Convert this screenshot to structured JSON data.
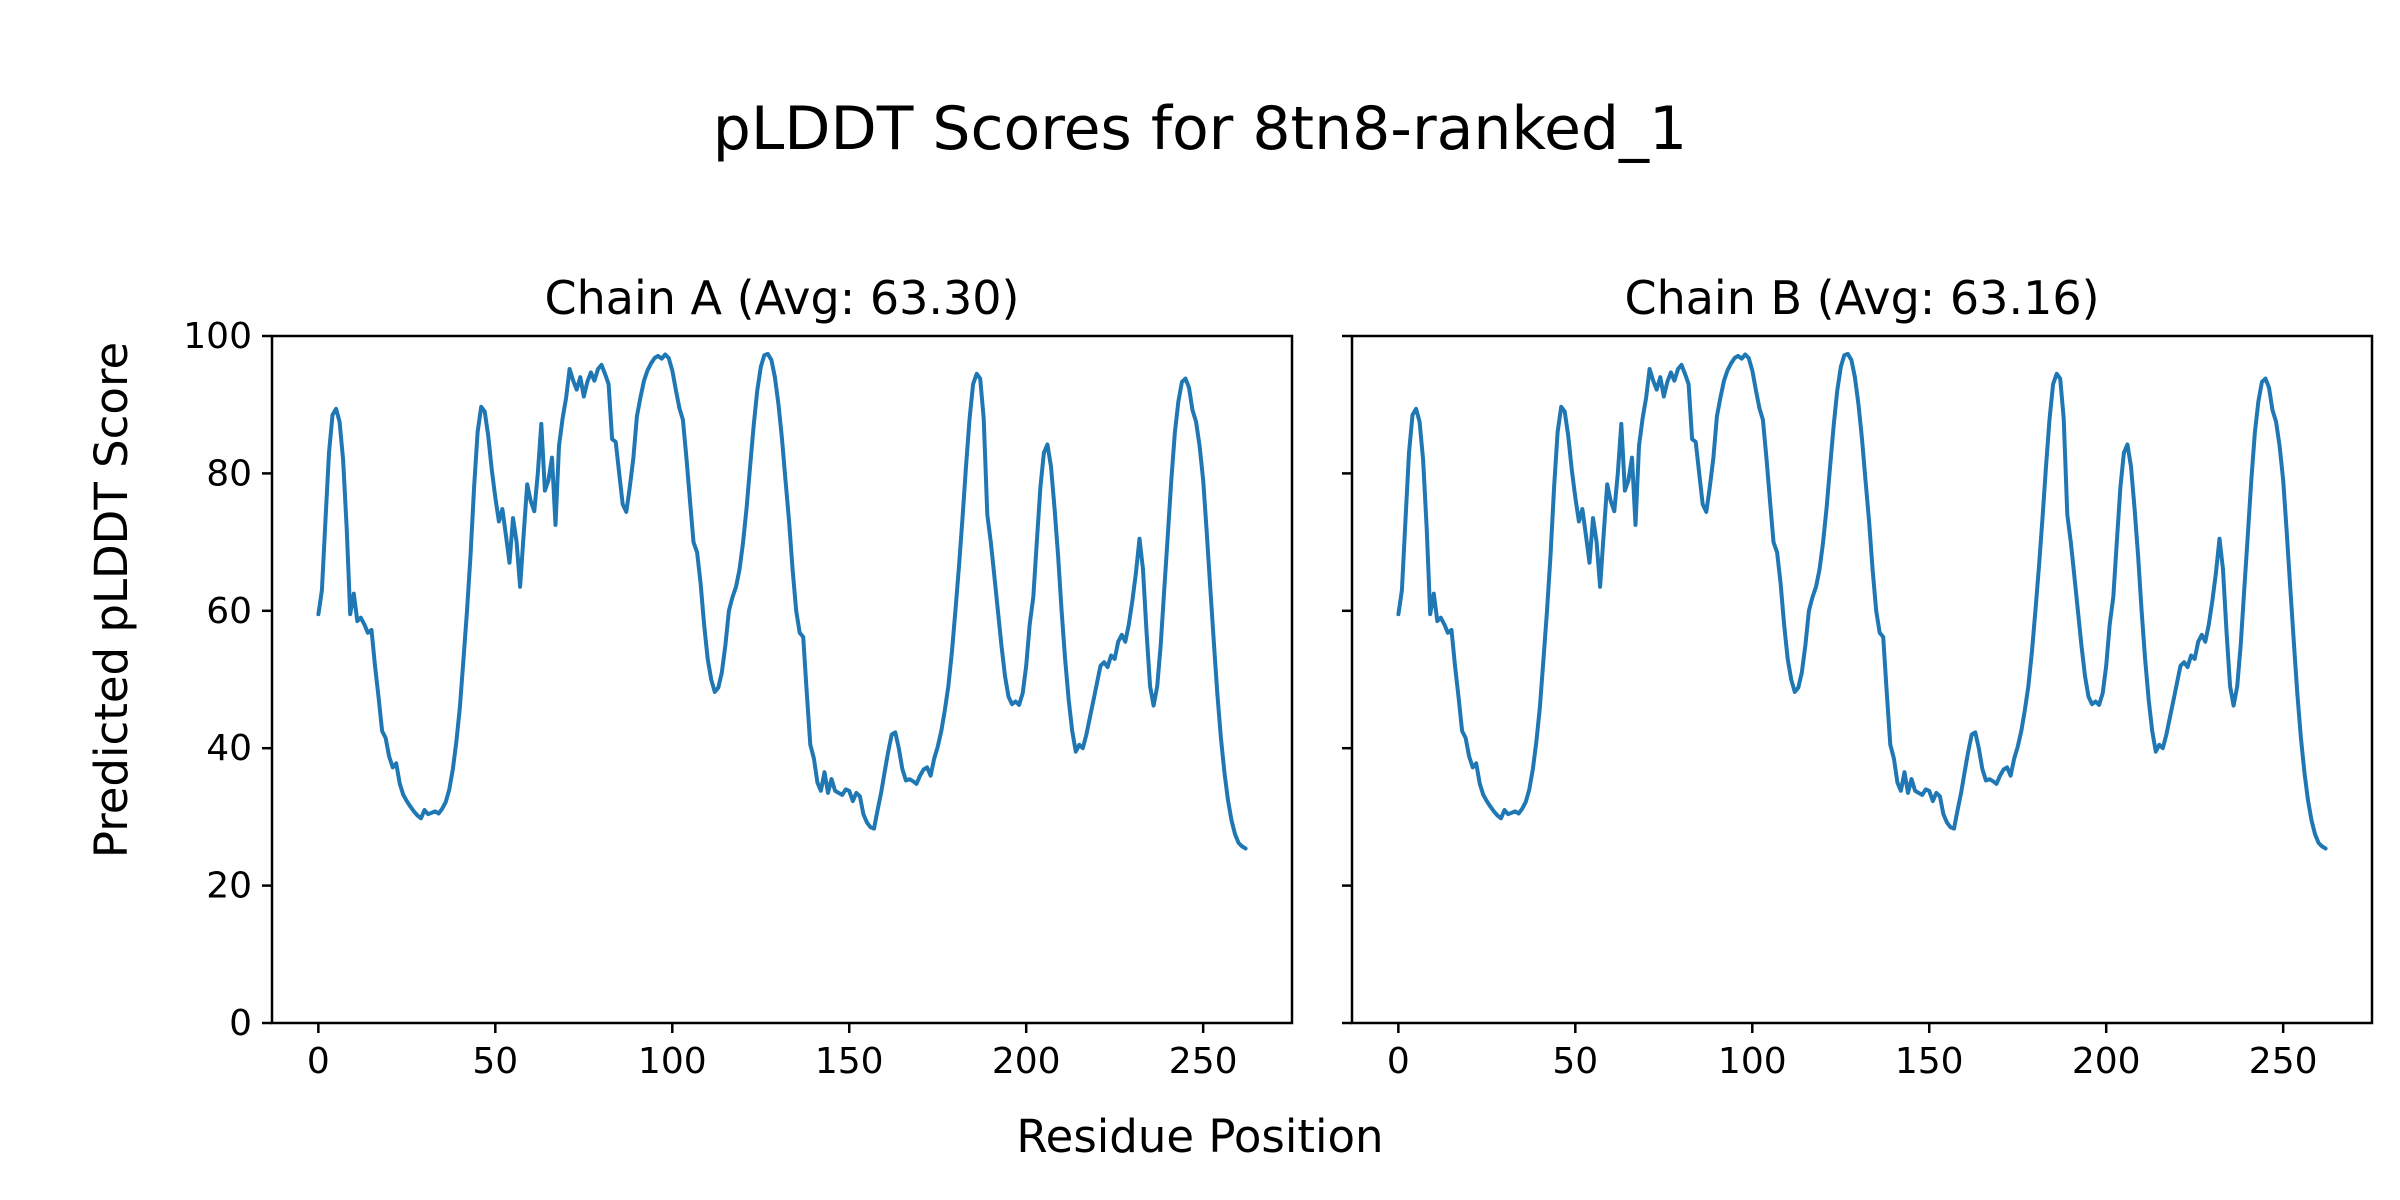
{
  "figure": {
    "title": "pLDDT Scores for 8tn8-ranked_1",
    "xlabel": "Residue Position",
    "ylabel": "Predicted pLDDT Score",
    "background_color": "#ffffff",
    "text_color": "#000000",
    "line_color": "#1f77b4"
  },
  "chart_data": [
    {
      "type": "line",
      "title": "Chain A (Avg: 63.30)",
      "series_name": "Chain A",
      "avg": 63.3,
      "x_start": 0,
      "x_step": 1,
      "xlim": [
        -13.1,
        275.1
      ],
      "ylim": [
        0,
        100
      ],
      "xticks": [
        0,
        50,
        100,
        150,
        200,
        250
      ],
      "yticks": [
        0,
        20,
        40,
        60,
        80,
        100
      ],
      "ytick_labels_visible": true,
      "grid": false,
      "legend": "none",
      "values_ref": "shared_plddt"
    },
    {
      "type": "line",
      "title": "Chain B (Avg: 63.16)",
      "series_name": "Chain B",
      "avg": 63.16,
      "x_start": 0,
      "x_step": 1,
      "xlim": [
        -13.1,
        275.1
      ],
      "ylim": [
        0,
        100
      ],
      "xticks": [
        0,
        50,
        100,
        150,
        200,
        250
      ],
      "yticks": [
        0,
        20,
        40,
        60,
        80,
        100
      ],
      "ytick_labels_visible": false,
      "grid": false,
      "legend": "none",
      "values_ref": "shared_plddt"
    }
  ],
  "shared_plddt": [
    59.5,
    63,
    73,
    83,
    88.5,
    89.4,
    87.5,
    82,
    72,
    59.5,
    62.5,
    58.5,
    59,
    58,
    56.8,
    57.2,
    52,
    47.5,
    42.5,
    41.5,
    38.8,
    37.2,
    37.8,
    34.8,
    33.2,
    32.3,
    31.5,
    30.8,
    30.2,
    29.8,
    31,
    30.4,
    30.6,
    30.8,
    30.5,
    31.2,
    32.2,
    34,
    37,
    41,
    46,
    53,
    60,
    68,
    78,
    86,
    89.7,
    89,
    85.5,
    80.5,
    76.5,
    73,
    74.8,
    71,
    67,
    73.5,
    70,
    63.5,
    71,
    78.4,
    76,
    74.5,
    80,
    87.2,
    77.5,
    79,
    82.3,
    72.5,
    84,
    88,
    91,
    95.2,
    93.5,
    92.2,
    94,
    91.2,
    93.3,
    94.7,
    93.5,
    95.2,
    95.8,
    94.5,
    93,
    85,
    84.6,
    80,
    75.5,
    74.4,
    78,
    82.3,
    88.3,
    91,
    93.5,
    95,
    96,
    96.8,
    97.1,
    96.7,
    97.3,
    96.8,
    95,
    92.2,
    89.5,
    87.8,
    82.3,
    76,
    70,
    68.5,
    64,
    58,
    53,
    50,
    48.2,
    48.8,
    51,
    55,
    60,
    62,
    63.5,
    66,
    70,
    75,
    81,
    87,
    92,
    95.5,
    97.2,
    97.4,
    96.5,
    94,
    90,
    85,
    79,
    73,
    66,
    60,
    56.8,
    56.2,
    48,
    40.5,
    38.5,
    35,
    33.8,
    36.5,
    33.5,
    35.5,
    33.8,
    33.5,
    33.2,
    34,
    33.8,
    32.3,
    33.5,
    33,
    30.4,
    29.2,
    28.5,
    28.3,
    31,
    33.5,
    36.5,
    39.5,
    42,
    42.3,
    40,
    37,
    35.3,
    35.5,
    35.2,
    34.8,
    36,
    36.9,
    37.2,
    36,
    38.5,
    40.2,
    42.5,
    45.5,
    49,
    54,
    60,
    66.5,
    73.5,
    81,
    88,
    93,
    94.5,
    93.8,
    88,
    74,
    70,
    65,
    60,
    55,
    50.5,
    47.5,
    46.4,
    46.8,
    46.3,
    48,
    52,
    58,
    62,
    70,
    78,
    83,
    84.2,
    81,
    75,
    68,
    60,
    53,
    47,
    42.5,
    39.5,
    40.5,
    40,
    42,
    44.5,
    47,
    49.5,
    52,
    52.5,
    51.8,
    53.5,
    53,
    55.5,
    56.5,
    55.5,
    58,
    61.5,
    65.5,
    70.5,
    66,
    57,
    49,
    46.2,
    49,
    55,
    63,
    71,
    79,
    86,
    90.5,
    93.3,
    93.8,
    92.5,
    89.2,
    87.5,
    84,
    79,
    71.5,
    63.5,
    55.5,
    48,
    41.5,
    36.5,
    32.5,
    29.5,
    27.5,
    26.2,
    25.7,
    25.4
  ]
}
